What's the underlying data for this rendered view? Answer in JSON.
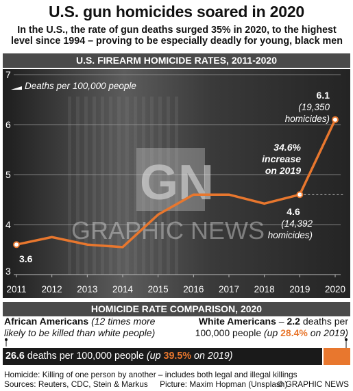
{
  "title": "U.S. gun homicides soared in 2020",
  "subtitle_line1": "In the U.S., the rate of gun deaths surged 35% in 2020, to the highest",
  "subtitle_line2": "level since 1994 – proving to be especially deadly for young, black men",
  "chart_header": "U.S. FIREARM HOMICIDE RATES, 2011-2020",
  "colors": {
    "line": "#e8772e",
    "header_bg": "#4a4a4a",
    "accent": "#e8772e"
  },
  "chart_data": {
    "type": "line",
    "title": "U.S. FIREARM HOMICIDE RATES, 2011-2020",
    "ylabel": "Deaths per 100,000 people",
    "x": [
      "2011",
      "2012",
      "2013",
      "2014",
      "2015",
      "2016",
      "2017",
      "2018",
      "2019",
      "2020"
    ],
    "series": [
      {
        "values": [
          3.6,
          3.75,
          3.6,
          3.55,
          4.2,
          4.6,
          4.6,
          4.42,
          4.6,
          6.1
        ]
      }
    ],
    "ylim": [
      3,
      7
    ],
    "yticks": [
      "3",
      "4",
      "5",
      "6",
      "7"
    ],
    "grid": true,
    "annotations": {
      "start_value": "3.6",
      "end_value": "6.1",
      "end_note_1": "(19,350",
      "end_note_2": "homicides)",
      "v2019": "4.6",
      "v2019_note_1": "(14,392",
      "v2019_note_2": "homicides)",
      "increase_1": "34.6%",
      "increase_2": "increase",
      "increase_3": "on 2019"
    }
  },
  "watermark": {
    "logo": "GN",
    "text": "GRAPHIC NEWS"
  },
  "comparison": {
    "header": "HOMICIDE RATE COMPARISON, 2020",
    "left_bold": "African Americans",
    "left_italic_1": "(12 times more",
    "left_italic_2": "likely to be killed than white people)",
    "right_bold": "White Americans",
    "right_text_1": " – ",
    "right_bold_2": "2.2",
    "right_text_2": " deaths per",
    "right_text_3": "100,000 people ",
    "right_italic_1": "(up ",
    "right_pct": "28.4%",
    "right_italic_2": " on 2019)",
    "bar_bold": "26.6",
    "bar_text": " deaths per 100,000 people ",
    "bar_italic_1": "(up ",
    "bar_pct": "39.5%",
    "bar_italic_2": " on 2019)",
    "values": {
      "african_americans": 26.6,
      "white_americans": 2.2
    }
  },
  "footer": {
    "definition": "Homicide: Killing of one person by another – includes both legal and illegal killings",
    "sources": "Sources: Reuters, CDC, Stein & Markus",
    "picture": "Picture: Maxim Hopman (Unsplash)",
    "credit": "© GRAPHIC NEWS"
  }
}
